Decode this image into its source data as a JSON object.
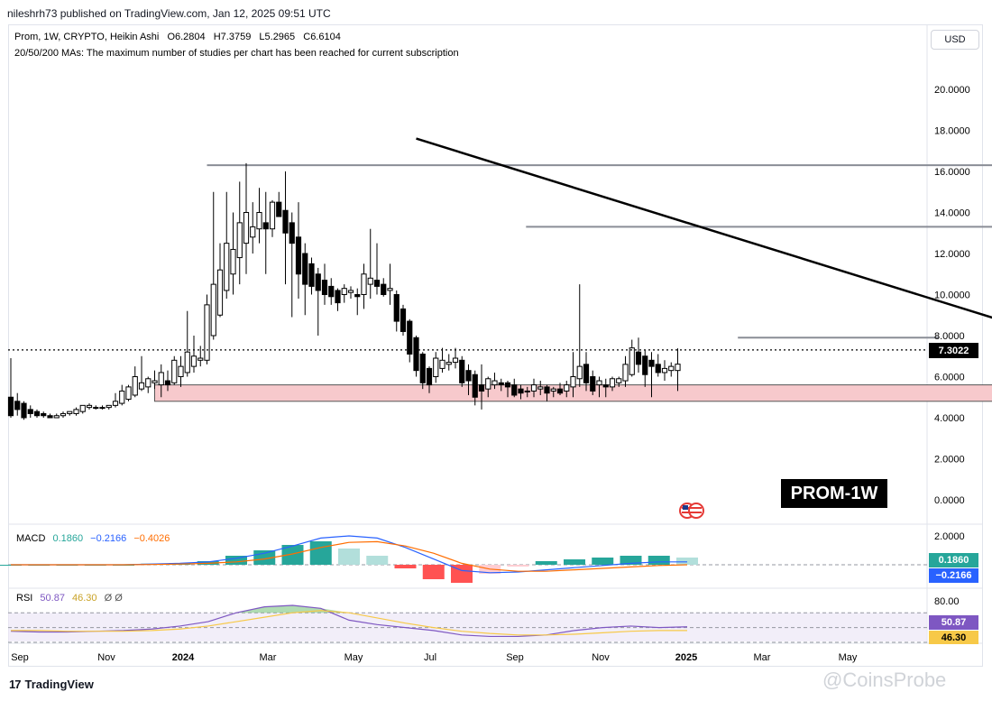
{
  "publisher": "nileshrh73 published on TradingView.com, Jan 12, 2025 09:51 UTC",
  "symbol_line": {
    "symbol": "Prom, 1W, CRYPTO, Heikin Ashi",
    "o_label": "O",
    "o": "6.2804",
    "h_label": "H",
    "h": "7.3759",
    "l_label": "L",
    "l": "5.2965",
    "c_label": "C",
    "c": "6.6104"
  },
  "ma_notice": "20/50/200 MAs: The maximum number of studies per chart has been reached for current subscription",
  "currency_button": "USD",
  "badge": "PROM-1W",
  "current_price": "7.3022",
  "macd": {
    "label": "MACD",
    "v1": "0.1860",
    "v2": "−0.2166",
    "v3": "−0.4026",
    "box1": "0.1860",
    "box2": "−0.2166",
    "tick": "2.0000"
  },
  "rsi": {
    "label": "RSI",
    "v1": "50.87",
    "v2": "46.30",
    "v3": "Ø Ø",
    "box1": "50.87",
    "box2": "46.30",
    "tick": "80.00"
  },
  "brand": "TradingView",
  "watermark": "@CoinsProbe",
  "colors": {
    "up": "#ffffff",
    "down": "#000000",
    "zone": "#f7c9cc",
    "trendline": "#000000",
    "macd_line": "#2962ff",
    "signal_line": "#ff6d00",
    "rsi_line": "#7e57c2",
    "rsi_ma": "#f7c948",
    "price_box": "#000000",
    "macd_box1": "#26a69a",
    "macd_box2": "#2962ff",
    "rsi_box1": "#7e57c2",
    "rsi_box2": "#f7c948"
  },
  "chart_data": [
    {
      "type": "candlestick",
      "title": "Prom, 1W, CRYPTO, Heikin Ashi",
      "x_ticks": [
        "Sep",
        "Nov",
        "2024",
        "Mar",
        "May",
        "Jul",
        "Sep",
        "Nov",
        "2025",
        "Mar",
        "May"
      ],
      "y_ticks": [
        "20.0000",
        "18.0000",
        "16.0000",
        "14.0000",
        "12.0000",
        "10.0000",
        "8.0000",
        "6.0000",
        "4.0000",
        "2.0000",
        "0.0000"
      ],
      "ylim": [
        -1,
        21
      ],
      "candles": [
        {
          "o": 5.0,
          "h": 6.9,
          "l": 4.0,
          "c": 4.1
        },
        {
          "o": 4.8,
          "h": 5.2,
          "l": 4.1,
          "c": 4.4
        },
        {
          "o": 4.7,
          "h": 4.8,
          "l": 3.9,
          "c": 4.0
        },
        {
          "o": 4.4,
          "h": 4.6,
          "l": 4.0,
          "c": 4.2
        },
        {
          "o": 4.3,
          "h": 4.4,
          "l": 4.0,
          "c": 4.1
        },
        {
          "o": 4.2,
          "h": 4.3,
          "l": 4.0,
          "c": 4.1
        },
        {
          "o": 4.1,
          "h": 4.2,
          "l": 4.0,
          "c": 4.0
        },
        {
          "o": 4.0,
          "h": 4.2,
          "l": 4.0,
          "c": 4.1
        },
        {
          "o": 4.1,
          "h": 4.3,
          "l": 4.0,
          "c": 4.2
        },
        {
          "o": 4.2,
          "h": 4.3,
          "l": 4.1,
          "c": 4.3
        },
        {
          "o": 4.2,
          "h": 4.5,
          "l": 4.1,
          "c": 4.4
        },
        {
          "o": 4.3,
          "h": 4.6,
          "l": 4.2,
          "c": 4.6
        },
        {
          "o": 4.5,
          "h": 4.7,
          "l": 4.4,
          "c": 4.6
        },
        {
          "o": 4.5,
          "h": 4.6,
          "l": 4.4,
          "c": 4.5
        },
        {
          "o": 4.5,
          "h": 4.6,
          "l": 4.4,
          "c": 4.5
        },
        {
          "o": 4.5,
          "h": 4.6,
          "l": 4.4,
          "c": 4.6
        },
        {
          "o": 4.6,
          "h": 5.2,
          "l": 4.5,
          "c": 4.8
        },
        {
          "o": 4.7,
          "h": 5.6,
          "l": 4.6,
          "c": 5.3
        },
        {
          "o": 4.9,
          "h": 5.6,
          "l": 4.8,
          "c": 5.5
        },
        {
          "o": 5.1,
          "h": 6.5,
          "l": 5.0,
          "c": 6.0
        },
        {
          "o": 5.4,
          "h": 7.0,
          "l": 5.3,
          "c": 5.7
        },
        {
          "o": 5.5,
          "h": 6.0,
          "l": 5.2,
          "c": 5.9
        },
        {
          "o": 5.7,
          "h": 6.3,
          "l": 5.4,
          "c": 5.8
        },
        {
          "o": 5.6,
          "h": 6.6,
          "l": 5.0,
          "c": 6.2
        },
        {
          "o": 5.8,
          "h": 6.3,
          "l": 5.3,
          "c": 5.6
        },
        {
          "o": 5.7,
          "h": 7.0,
          "l": 5.6,
          "c": 6.8
        },
        {
          "o": 6.0,
          "h": 7.0,
          "l": 5.5,
          "c": 6.5
        },
        {
          "o": 6.2,
          "h": 9.2,
          "l": 6.0,
          "c": 7.2
        },
        {
          "o": 6.5,
          "h": 8.0,
          "l": 6.2,
          "c": 7.0
        },
        {
          "o": 6.8,
          "h": 7.5,
          "l": 6.5,
          "c": 6.9
        },
        {
          "o": 6.8,
          "h": 10.0,
          "l": 6.6,
          "c": 9.5
        },
        {
          "o": 8.0,
          "h": 15.0,
          "l": 7.8,
          "c": 10.5
        },
        {
          "o": 9.0,
          "h": 12.5,
          "l": 8.9,
          "c": 11.2
        },
        {
          "o": 10.2,
          "h": 15.0,
          "l": 9.8,
          "c": 12.5
        },
        {
          "o": 11.0,
          "h": 14.0,
          "l": 10.0,
          "c": 12.2
        },
        {
          "o": 11.8,
          "h": 15.5,
          "l": 10.5,
          "c": 13.5
        },
        {
          "o": 12.5,
          "h": 16.4,
          "l": 11.0,
          "c": 14.0
        },
        {
          "o": 12.8,
          "h": 14.5,
          "l": 12.0,
          "c": 13.3
        },
        {
          "o": 13.2,
          "h": 15.2,
          "l": 12.5,
          "c": 14.0
        },
        {
          "o": 13.5,
          "h": 15.0,
          "l": 11.0,
          "c": 13.2
        },
        {
          "o": 13.2,
          "h": 14.6,
          "l": 12.8,
          "c": 14.5
        },
        {
          "o": 14.5,
          "h": 15.0,
          "l": 13.8,
          "c": 13.8
        },
        {
          "o": 14.1,
          "h": 16.0,
          "l": 10.5,
          "c": 13.0
        },
        {
          "o": 13.5,
          "h": 14.0,
          "l": 8.9,
          "c": 12.5
        },
        {
          "o": 12.8,
          "h": 14.5,
          "l": 9.8,
          "c": 11.0
        },
        {
          "o": 12.0,
          "h": 12.5,
          "l": 9.0,
          "c": 10.5
        },
        {
          "o": 11.5,
          "h": 11.8,
          "l": 10.0,
          "c": 10.4
        },
        {
          "o": 11.0,
          "h": 11.3,
          "l": 8.0,
          "c": 10.2
        },
        {
          "o": 10.7,
          "h": 11.5,
          "l": 9.5,
          "c": 10.0
        },
        {
          "o": 10.4,
          "h": 10.8,
          "l": 9.5,
          "c": 9.9
        },
        {
          "o": 10.2,
          "h": 10.3,
          "l": 9.2,
          "c": 9.6
        },
        {
          "o": 10.0,
          "h": 10.5,
          "l": 9.6,
          "c": 10.3
        },
        {
          "o": 10.1,
          "h": 10.4,
          "l": 9.8,
          "c": 10.2
        },
        {
          "o": 10.0,
          "h": 10.3,
          "l": 9.0,
          "c": 9.9
        },
        {
          "o": 10.0,
          "h": 11.5,
          "l": 9.3,
          "c": 11.0
        },
        {
          "o": 10.5,
          "h": 13.2,
          "l": 9.8,
          "c": 10.8
        },
        {
          "o": 10.7,
          "h": 12.5,
          "l": 10.0,
          "c": 10.4
        },
        {
          "o": 10.5,
          "h": 10.8,
          "l": 9.9,
          "c": 10.0
        },
        {
          "o": 10.2,
          "h": 11.5,
          "l": 9.5,
          "c": 10.3
        },
        {
          "o": 10.0,
          "h": 10.2,
          "l": 8.2,
          "c": 8.7
        },
        {
          "o": 9.3,
          "h": 9.5,
          "l": 8.0,
          "c": 8.2
        },
        {
          "o": 8.7,
          "h": 8.8,
          "l": 6.7,
          "c": 7.1
        },
        {
          "o": 7.9,
          "h": 8.0,
          "l": 6.0,
          "c": 6.3
        },
        {
          "o": 7.1,
          "h": 7.2,
          "l": 5.4,
          "c": 5.7
        },
        {
          "o": 6.4,
          "h": 6.5,
          "l": 5.2,
          "c": 5.6
        },
        {
          "o": 6.0,
          "h": 7.2,
          "l": 5.7,
          "c": 6.9
        },
        {
          "o": 6.4,
          "h": 7.4,
          "l": 6.2,
          "c": 6.8
        },
        {
          "o": 6.6,
          "h": 7.1,
          "l": 6.3,
          "c": 6.7
        },
        {
          "o": 6.7,
          "h": 7.4,
          "l": 6.4,
          "c": 6.9
        },
        {
          "o": 6.8,
          "h": 7.0,
          "l": 5.5,
          "c": 5.7
        },
        {
          "o": 6.3,
          "h": 6.6,
          "l": 5.1,
          "c": 5.8
        },
        {
          "o": 6.1,
          "h": 6.3,
          "l": 4.6,
          "c": 5.0
        },
        {
          "o": 5.6,
          "h": 6.6,
          "l": 4.4,
          "c": 5.3
        },
        {
          "o": 5.4,
          "h": 6.0,
          "l": 5.0,
          "c": 5.9
        },
        {
          "o": 5.6,
          "h": 6.2,
          "l": 5.4,
          "c": 5.8
        },
        {
          "o": 5.7,
          "h": 5.9,
          "l": 5.3,
          "c": 5.6
        },
        {
          "o": 5.7,
          "h": 5.8,
          "l": 5.0,
          "c": 5.5
        },
        {
          "o": 5.6,
          "h": 5.9,
          "l": 5.0,
          "c": 5.1
        },
        {
          "o": 5.4,
          "h": 5.6,
          "l": 4.9,
          "c": 5.2
        },
        {
          "o": 5.3,
          "h": 5.5,
          "l": 5.0,
          "c": 5.3
        },
        {
          "o": 5.3,
          "h": 5.9,
          "l": 5.0,
          "c": 5.6
        },
        {
          "o": 5.4,
          "h": 5.8,
          "l": 5.1,
          "c": 5.5
        },
        {
          "o": 5.5,
          "h": 5.6,
          "l": 4.8,
          "c": 5.2
        },
        {
          "o": 5.3,
          "h": 5.5,
          "l": 5.0,
          "c": 5.4
        },
        {
          "o": 5.4,
          "h": 5.7,
          "l": 5.1,
          "c": 5.2
        },
        {
          "o": 5.3,
          "h": 5.8,
          "l": 5.0,
          "c": 5.6
        },
        {
          "o": 5.5,
          "h": 7.2,
          "l": 5.0,
          "c": 6.0
        },
        {
          "o": 5.9,
          "h": 10.5,
          "l": 5.5,
          "c": 6.5
        },
        {
          "o": 6.6,
          "h": 7.2,
          "l": 5.3,
          "c": 5.7
        },
        {
          "o": 6.0,
          "h": 6.3,
          "l": 5.1,
          "c": 5.3
        },
        {
          "o": 5.6,
          "h": 6.0,
          "l": 5.0,
          "c": 5.8
        },
        {
          "o": 5.6,
          "h": 5.9,
          "l": 5.0,
          "c": 5.5
        },
        {
          "o": 5.5,
          "h": 6.0,
          "l": 5.3,
          "c": 5.9
        },
        {
          "o": 5.7,
          "h": 6.0,
          "l": 5.5,
          "c": 5.9
        },
        {
          "o": 5.8,
          "h": 7.0,
          "l": 5.5,
          "c": 6.6
        },
        {
          "o": 6.1,
          "h": 7.8,
          "l": 6.0,
          "c": 7.4
        },
        {
          "o": 7.2,
          "h": 7.9,
          "l": 6.2,
          "c": 6.6
        },
        {
          "o": 7.0,
          "h": 7.3,
          "l": 5.5,
          "c": 6.1
        },
        {
          "o": 6.8,
          "h": 7.2,
          "l": 5.0,
          "c": 6.5
        },
        {
          "o": 6.6,
          "h": 7.1,
          "l": 6.0,
          "c": 6.2
        },
        {
          "o": 6.2,
          "h": 6.8,
          "l": 5.8,
          "c": 6.4
        },
        {
          "o": 6.3,
          "h": 6.7,
          "l": 6.0,
          "c": 6.5
        },
        {
          "o": 6.3,
          "h": 7.38,
          "l": 5.3,
          "c": 6.61
        }
      ],
      "annotations": {
        "trendline": [
          {
            "i": 15.5,
            "v": 17.6
          },
          {
            "i": 45.8,
            "v": 5.6
          }
        ],
        "resistance_lines": [
          {
            "i1": 7.5,
            "i2": 42,
            "v": 16.3
          },
          {
            "i1": 19.7,
            "i2": 41.3,
            "v": 13.3
          },
          {
            "i1": 27.8,
            "i2": 35.5,
            "v": 7.9
          }
        ],
        "support_zone": {
          "i1": 5.5,
          "i2": 45.7,
          "v1": 4.8,
          "v2": 5.6
        },
        "current_price": 7.3022
      }
    },
    {
      "type": "line",
      "title": "MACD",
      "series": [
        {
          "name": "MACD",
          "values": [
            0.0,
            0.0,
            0.0,
            0.0,
            0.0,
            0.05,
            0.1,
            0.2,
            0.45,
            0.8,
            1.3,
            1.85,
            2.0,
            1.85,
            1.2,
            0.4,
            -0.4,
            -0.55,
            -0.5,
            -0.35,
            -0.2,
            -0.05,
            0.1,
            0.2,
            0.2
          ]
        },
        {
          "name": "Signal",
          "values": [
            0.0,
            0.0,
            0.0,
            0.0,
            0.0,
            0.02,
            0.05,
            0.1,
            0.2,
            0.4,
            0.75,
            1.2,
            1.55,
            1.6,
            1.3,
            0.8,
            0.1,
            -0.3,
            -0.45,
            -0.45,
            -0.35,
            -0.25,
            -0.15,
            -0.05,
            0.0
          ]
        }
      ]
    },
    {
      "type": "line",
      "title": "RSI",
      "series": [
        {
          "name": "RSI",
          "values": [
            45,
            44,
            44,
            45,
            46,
            48,
            52,
            58,
            70,
            78,
            80,
            76,
            60,
            54,
            50,
            46,
            40,
            38,
            38,
            40,
            46,
            50,
            52,
            50,
            51
          ]
        },
        {
          "name": "RSI-based MA",
          "values": [
            46,
            46,
            45,
            45,
            45,
            46,
            48,
            52,
            58,
            64,
            70,
            73,
            70,
            63,
            56,
            50,
            45,
            42,
            40,
            40,
            41,
            43,
            45,
            46,
            46
          ]
        }
      ]
    }
  ]
}
